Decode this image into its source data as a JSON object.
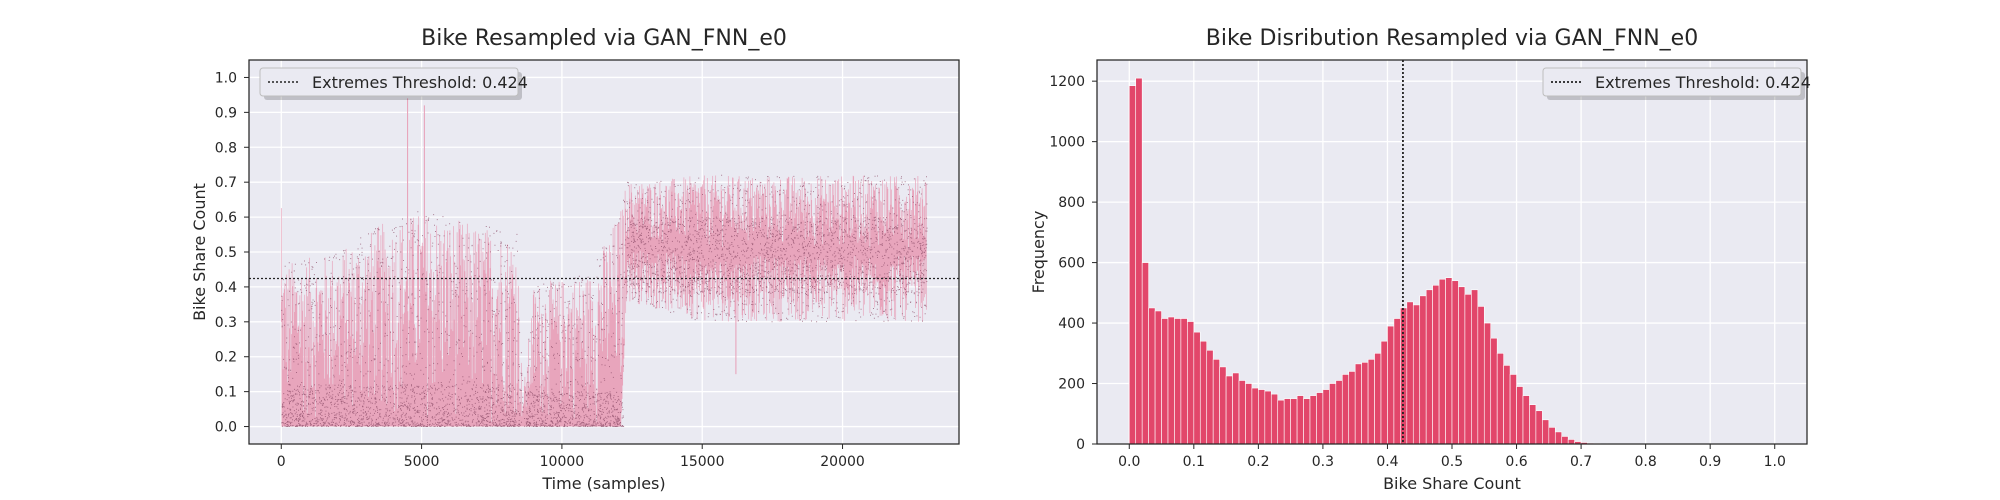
{
  "colors": {
    "axes_bg": "#eaeaf2",
    "grid": "#ffffff",
    "trace_fill": "#e8a5bc",
    "trace_dots": "#8a4a65",
    "hist_bar": "#e2466a",
    "threshold": "#222222"
  },
  "chart_data": [
    {
      "type": "line",
      "title": "Bike Resampled via GAN_FNN_e0",
      "xlabel": "Time (samples)",
      "ylabel": "Bike Share Count",
      "xlim": [
        -1150,
        24150
      ],
      "ylim": [
        -0.05,
        1.05
      ],
      "xticks": [
        0,
        5000,
        10000,
        15000,
        20000
      ],
      "yticks": [
        0.0,
        0.1,
        0.2,
        0.3,
        0.4,
        0.5,
        0.6,
        0.7,
        0.8,
        0.9,
        1.0
      ],
      "grid": true,
      "legend": {
        "placement": "top-left",
        "entries": [
          "Extremes Threshold: 0.424"
        ]
      },
      "threshold": 0.424,
      "n_samples": 23000,
      "envelope": [
        {
          "x": 0,
          "low": 0.0,
          "high": 0.47
        },
        {
          "x": 2000,
          "low": 0.0,
          "high": 0.5
        },
        {
          "x": 3500,
          "low": 0.0,
          "high": 0.58
        },
        {
          "x": 5000,
          "low": 0.0,
          "high": 0.62
        },
        {
          "x": 7000,
          "low": 0.0,
          "high": 0.58
        },
        {
          "x": 8400,
          "low": 0.0,
          "high": 0.55
        },
        {
          "x": 8600,
          "low": 0.0,
          "high": 0.08
        },
        {
          "x": 9000,
          "low": 0.0,
          "high": 0.41
        },
        {
          "x": 11000,
          "low": 0.0,
          "high": 0.44
        },
        {
          "x": 12100,
          "low": 0.0,
          "high": 0.63
        },
        {
          "x": 12300,
          "low": 0.36,
          "high": 0.7
        },
        {
          "x": 15000,
          "low": 0.3,
          "high": 0.72
        },
        {
          "x": 18000,
          "low": 0.3,
          "high": 0.72
        },
        {
          "x": 23000,
          "low": 0.3,
          "high": 0.72
        }
      ],
      "spikes": [
        {
          "x": 4500,
          "y": 0.94
        },
        {
          "x": 5100,
          "y": 0.92
        },
        {
          "x": 16200,
          "y": 0.15
        }
      ],
      "dense_bands": [
        {
          "x_range": [
            0,
            8500
          ],
          "low": 0.0,
          "high": 0.12
        },
        {
          "x_range": [
            8700,
            12200
          ],
          "low": 0.0,
          "high": 0.1
        },
        {
          "x_range": [
            12300,
            23000
          ],
          "low": 0.38,
          "high": 0.6
        }
      ]
    },
    {
      "type": "bar",
      "title": "Bike Disribution Resampled via GAN_FNN_e0",
      "xlabel": "Bike Share Count",
      "ylabel": "Frequency",
      "xlim": [
        -0.05,
        1.05
      ],
      "ylim": [
        0,
        1270
      ],
      "xticks": [
        0.0,
        0.1,
        0.2,
        0.3,
        0.4,
        0.5,
        0.6,
        0.7,
        0.8,
        0.9,
        1.0
      ],
      "yticks": [
        0,
        200,
        400,
        600,
        800,
        1000,
        1200
      ],
      "grid": true,
      "legend": {
        "placement": "top-right",
        "entries": [
          "Extremes Threshold: 0.424"
        ]
      },
      "threshold": 0.424,
      "bin_start": 0.0,
      "bin_width": 0.01,
      "values": [
        1185,
        1210,
        600,
        450,
        440,
        415,
        420,
        415,
        415,
        405,
        370,
        340,
        310,
        280,
        255,
        225,
        235,
        210,
        200,
        185,
        180,
        175,
        165,
        145,
        150,
        150,
        160,
        150,
        160,
        170,
        180,
        200,
        210,
        230,
        240,
        265,
        270,
        280,
        300,
        340,
        390,
        415,
        450,
        470,
        460,
        490,
        510,
        525,
        545,
        550,
        540,
        520,
        495,
        510,
        455,
        400,
        350,
        300,
        260,
        230,
        190,
        160,
        130,
        110,
        80,
        55,
        40,
        25,
        15,
        8,
        5,
        3,
        2,
        1,
        1,
        0,
        0,
        0,
        0,
        0,
        0,
        0,
        0,
        0,
        0,
        0,
        0,
        0,
        0,
        0,
        0,
        0,
        0,
        0,
        0,
        0,
        0,
        0,
        0,
        0
      ]
    }
  ]
}
